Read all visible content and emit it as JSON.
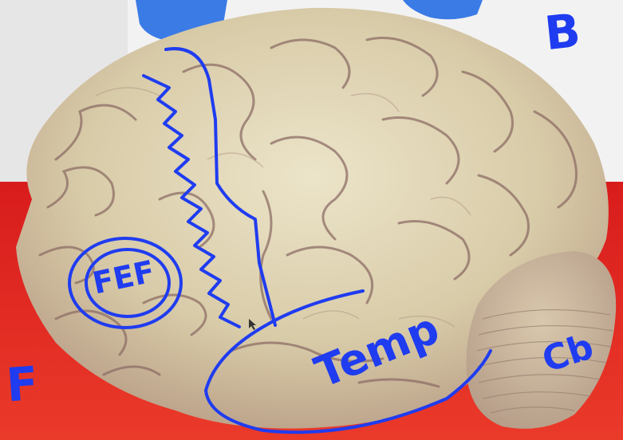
{
  "image": {
    "subject": "photograph-of-brain-specimen",
    "colors": {
      "ink": "#1f3cf0",
      "tray": "#e3201f",
      "background": "#f2f2f2",
      "tissue": "#d9cfb0",
      "glove": "#3b7be6"
    }
  },
  "annotations": {
    "top_right": "B",
    "bottom_left": "F",
    "circled": "FEF",
    "lower_region": "Temp",
    "bottom_right": "Cb"
  }
}
